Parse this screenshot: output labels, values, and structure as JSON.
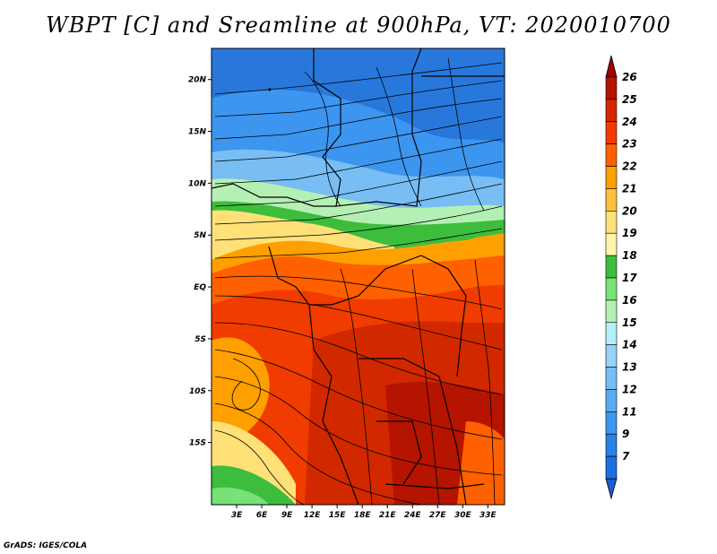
{
  "title": "WBPT [C] and Sreamline at 900hPa, VT: 2020010700",
  "credit": "GrADS: IGES/COLA",
  "map": {
    "variable": "Wet-bulb potential temperature (WBPT)",
    "units": "C",
    "level": "900hPa",
    "valid_time": "2020010700",
    "lat_range": [
      -21,
      23
    ],
    "lon_range": [
      0,
      35
    ],
    "lat_ticks": [
      {
        "value": 20,
        "label": "20N"
      },
      {
        "value": 15,
        "label": "15N"
      },
      {
        "value": 10,
        "label": "10N"
      },
      {
        "value": 5,
        "label": "5N"
      },
      {
        "value": 0,
        "label": "EQ"
      },
      {
        "value": -5,
        "label": "5S"
      },
      {
        "value": -10,
        "label": "10S"
      },
      {
        "value": -15,
        "label": "15S"
      }
    ],
    "lon_ticks": [
      {
        "value": 3,
        "label": "3E"
      },
      {
        "value": 6,
        "label": "6E"
      },
      {
        "value": 9,
        "label": "9E"
      },
      {
        "value": 12,
        "label": "12E"
      },
      {
        "value": 15,
        "label": "15E"
      },
      {
        "value": 18,
        "label": "18E"
      },
      {
        "value": 21,
        "label": "21E"
      },
      {
        "value": 24,
        "label": "24E"
      },
      {
        "value": 27,
        "label": "27E"
      },
      {
        "value": 30,
        "label": "30E"
      },
      {
        "value": 33,
        "label": "33E"
      }
    ]
  },
  "colorbar": {
    "levels": [
      {
        "label": "7",
        "color": "#1e6ee0"
      },
      {
        "label": "9",
        "color": "#2882e6"
      },
      {
        "label": "11",
        "color": "#3c96f0"
      },
      {
        "label": "12",
        "color": "#5aaaf0"
      },
      {
        "label": "13",
        "color": "#78bef5"
      },
      {
        "label": "14",
        "color": "#96d2fa"
      },
      {
        "label": "15",
        "color": "#b4f0fa"
      },
      {
        "label": "16",
        "color": "#b4f0b4"
      },
      {
        "label": "17",
        "color": "#78e178"
      },
      {
        "label": "18",
        "color": "#3cbe3c"
      },
      {
        "label": "19",
        "color": "#fff5aa"
      },
      {
        "label": "20",
        "color": "#ffe178"
      },
      {
        "label": "21",
        "color": "#ffc03c"
      },
      {
        "label": "22",
        "color": "#ffa000"
      },
      {
        "label": "23",
        "color": "#ff6000"
      },
      {
        "label": "24",
        "color": "#f03c00"
      },
      {
        "label": "25",
        "color": "#d22800"
      },
      {
        "label": "26",
        "color": "#b41400"
      }
    ],
    "under_color": "#1e5ad2",
    "over_color": "#a00000"
  }
}
